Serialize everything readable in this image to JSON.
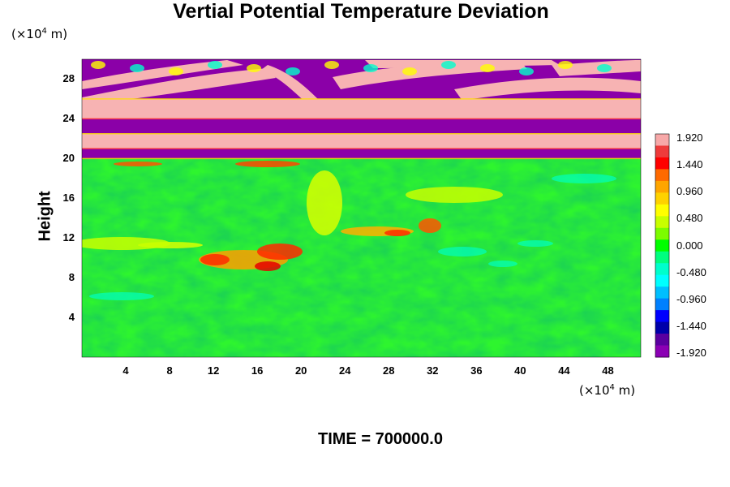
{
  "chart_data": {
    "type": "heatmap",
    "title": "Vertial Potential Temperature Deviation",
    "ylabel": "Height",
    "x_unit": "(×10⁴ m)",
    "y_unit": "(×10⁴ m)",
    "x_unit_parts": {
      "prefix": "(×10",
      "exp": "4",
      "suffix": " m)"
    },
    "y_unit_parts": {
      "prefix": "(×10",
      "exp": "4",
      "suffix": " m)"
    },
    "xlim": [
      0,
      51
    ],
    "ylim": [
      0,
      30
    ],
    "xticks": [
      4,
      8,
      12,
      16,
      20,
      24,
      28,
      32,
      36,
      40,
      44,
      48
    ],
    "yticks": [
      4,
      8,
      12,
      16,
      20,
      24,
      28
    ],
    "colorbar": {
      "min": -1.92,
      "max": 1.92,
      "labels": [
        "1.920",
        "1.440",
        "0.960",
        "0.480",
        "0.000",
        "-0.480",
        "-0.960",
        "-1.440",
        "-1.920"
      ],
      "colors": [
        "#f7a8a8",
        "#ee3b3b",
        "#ff0000",
        "#ff6a00",
        "#ffa500",
        "#ffd200",
        "#ffff00",
        "#c8ff00",
        "#7cfc00",
        "#00ff00",
        "#00ff7f",
        "#00ffcc",
        "#00ffff",
        "#00bfff",
        "#0080ff",
        "#0000ff",
        "#0000aa",
        "#5a00a0",
        "#8b00b4"
      ]
    },
    "bands": [
      {
        "y": [
          26,
          30
        ],
        "value": "mixed"
      },
      {
        "y": [
          24,
          26
        ],
        "value": 1.92
      },
      {
        "y": [
          22.5,
          24
        ],
        "value": -1.92
      },
      {
        "y": [
          21,
          22.5
        ],
        "value": 1.92
      },
      {
        "y": [
          20,
          21
        ],
        "value": -1.92
      },
      {
        "y": [
          0,
          20
        ],
        "value": 0.0
      }
    ],
    "time_label": "TIME = 700000.0"
  }
}
